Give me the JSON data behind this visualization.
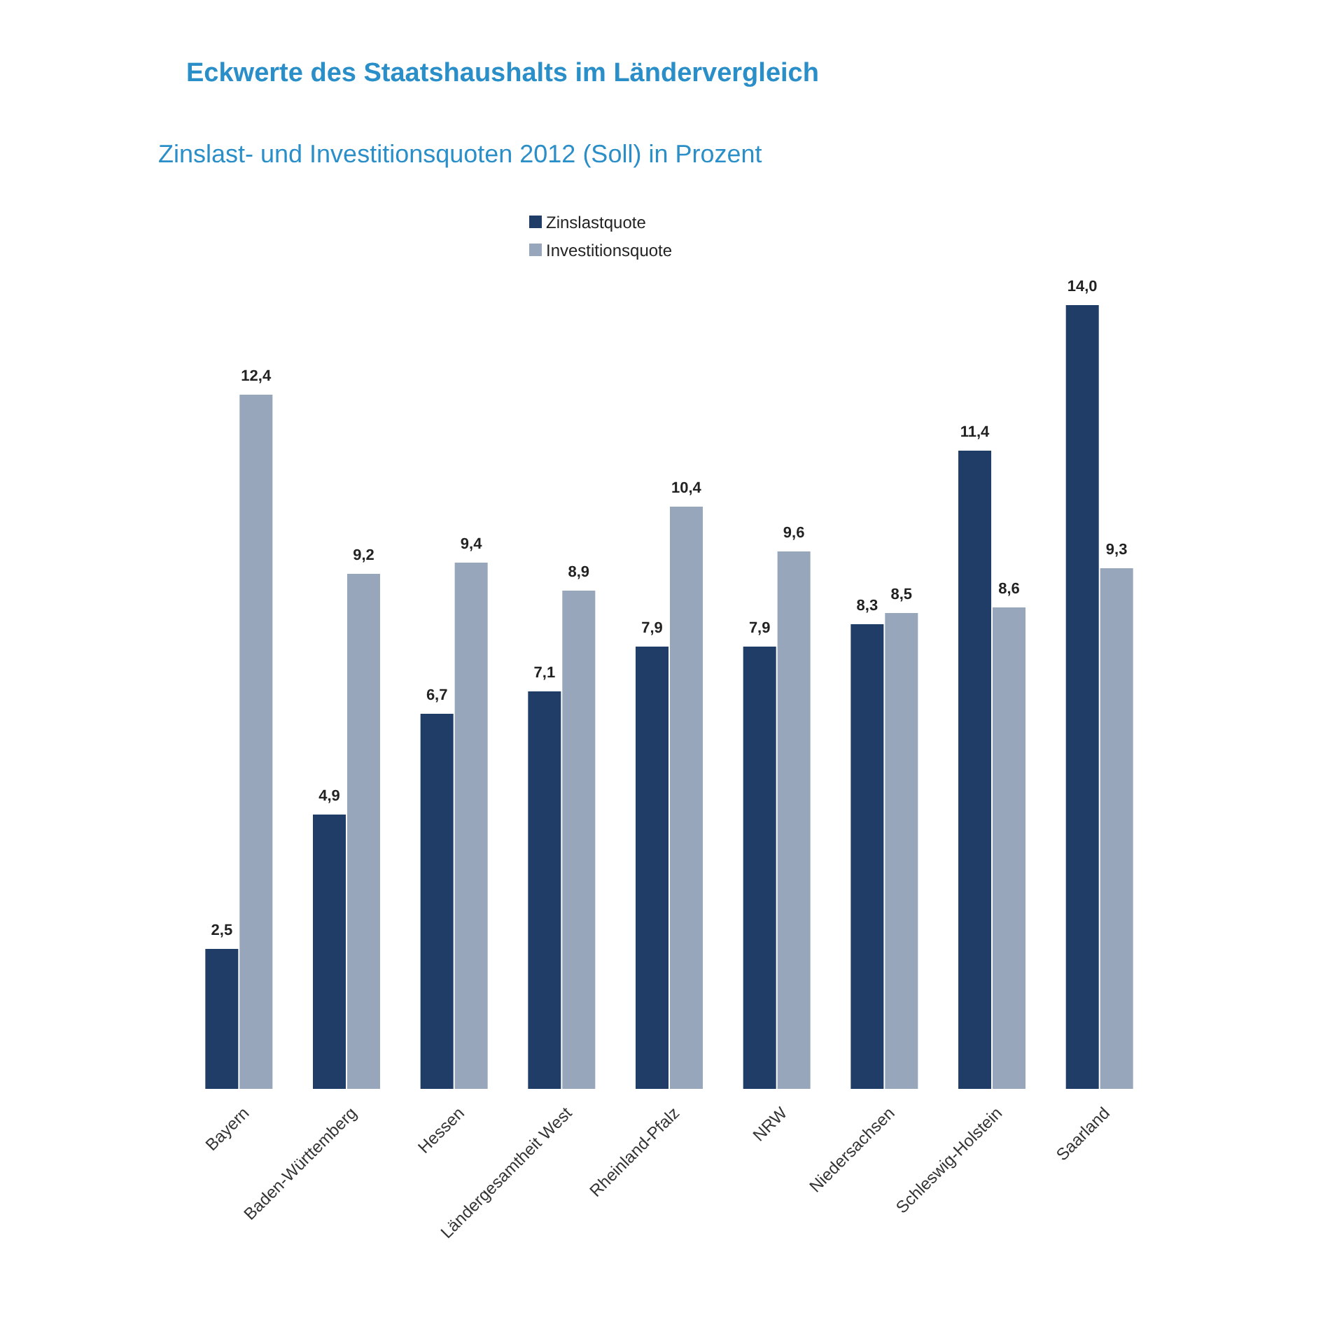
{
  "chart_data": {
    "type": "bar",
    "title": "Eckwerte des Staatshaushalts im Ländervergleich",
    "subtitle": "Zinslast- und Investitionsquoten 2012 (Soll) in Prozent",
    "categories": [
      "Bayern",
      "Baden-Württemberg",
      "Hessen",
      "Ländergesamtheit West",
      "Rheinland-Pfalz",
      "NRW",
      "Niedersachsen",
      "Schleswig-Holstein",
      "Saarland"
    ],
    "series": [
      {
        "name": "Zinslastquote",
        "color": "#1f3d66",
        "values": [
          2.5,
          4.9,
          6.7,
          7.1,
          7.9,
          7.9,
          8.3,
          11.4,
          14.0
        ],
        "value_labels": [
          "2,5",
          "4,9",
          "6,7",
          "7,1",
          "7,9",
          "7,9",
          "8,3",
          "11,4",
          "14,0"
        ]
      },
      {
        "name": "Investitionsquote",
        "color": "#97a6ba",
        "values": [
          12.4,
          9.2,
          9.4,
          8.9,
          10.4,
          9.6,
          8.5,
          8.6,
          9.3
        ],
        "value_labels": [
          "12,4",
          "9,2",
          "9,4",
          "8,9",
          "10,4",
          "9,6",
          "8,5",
          "8,6",
          "9,3"
        ]
      }
    ],
    "legend": "top",
    "grid": false
  }
}
